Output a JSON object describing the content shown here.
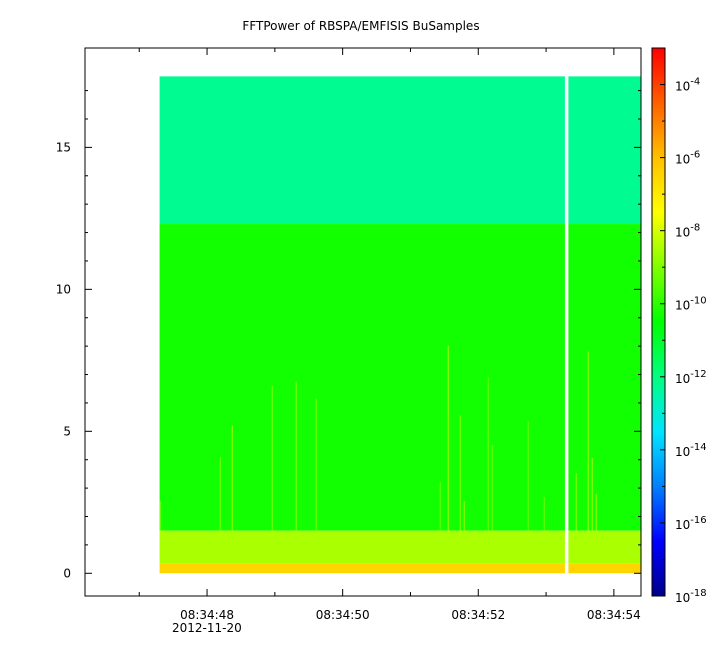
{
  "chart_data": {
    "type": "heatmap",
    "title": "FFTPower of RBSPA/EMFISIS  BuSamples",
    "xlabel": "",
    "ylabel": "",
    "x_axis": {
      "type": "time",
      "ticks": [
        "08:34:48",
        "08:34:50",
        "08:34:52",
        "08:34:54"
      ],
      "date_label": "2012-11-20",
      "range": [
        "08:34:46.2",
        "08:34:54.4"
      ]
    },
    "y_axis": {
      "ticks": [
        0,
        5,
        10,
        15
      ],
      "range": [
        -0.8,
        18.5
      ]
    },
    "data_extent": {
      "x_start": "08:34:47.3",
      "x_end": "08:34:54.4",
      "y_min": 0,
      "y_max": 17.5,
      "gap_at": "08:34:53.3"
    },
    "z_scale": "log",
    "colorbar": {
      "range": [
        "1e-18",
        "1e-3"
      ],
      "tick_labels": [
        {
          "base": "10",
          "exp": "-4"
        },
        {
          "base": "10",
          "exp": "-6"
        },
        {
          "base": "10",
          "exp": "-8"
        },
        {
          "base": "10",
          "exp": "-10"
        },
        {
          "base": "10",
          "exp": "-12"
        },
        {
          "base": "10",
          "exp": "-14"
        },
        {
          "base": "10",
          "exp": "-16"
        },
        {
          "base": "10",
          "exp": "-18"
        }
      ],
      "tick_exponents": [
        -4,
        -6,
        -8,
        -10,
        -12,
        -14,
        -16,
        -18
      ],
      "colors": [
        "#00008b",
        "#0000ff",
        "#0080ff",
        "#00e5ff",
        "#00ff80",
        "#00ff00",
        "#80ff00",
        "#ffff00",
        "#ffc000",
        "#ff6000",
        "#ff0000"
      ]
    },
    "bands": [
      {
        "y_from": 12.3,
        "y_to": 17.5,
        "log10_power": -12.2
      },
      {
        "y_from": 1.5,
        "y_to": 12.3,
        "log10_power": -10.3
      },
      {
        "y_from": 0.35,
        "y_to": 1.5,
        "log10_power": -8.5
      },
      {
        "y_from": 0.0,
        "y_to": 0.35,
        "log10_power": -6.5
      }
    ]
  }
}
